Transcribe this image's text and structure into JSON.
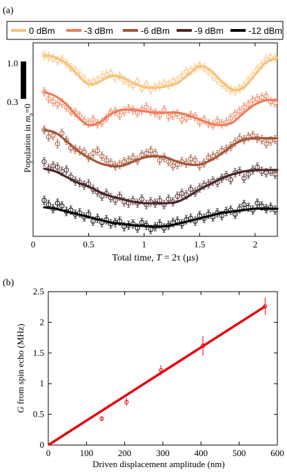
{
  "panels": {
    "a_label": "(a)",
    "b_label": "(b)"
  },
  "chart_data": [
    {
      "type": "scatter",
      "panel": "(a)",
      "xlabel": "Total time, T = 2τ (μs)",
      "xlabel_parts": {
        "main": "Total time, ",
        "ital": "T",
        "mid": " = 2τ (μs)"
      },
      "ylabel_parts": {
        "main": "Population in ",
        "ital": "m",
        "sub": "s",
        "end": "=0"
      },
      "xlim": [
        0,
        2.2
      ],
      "xticks": [
        0,
        0.5,
        1,
        1.5,
        2
      ],
      "scale_bar_labels": [
        "1.0",
        "0.3"
      ],
      "legend_position": "top",
      "series": [
        {
          "name": "0 dBm",
          "color": "#f6c27a",
          "offset": 80,
          "x": [
            0.1,
            0.14,
            0.18,
            0.22,
            0.26,
            0.3,
            0.34,
            0.38,
            0.42,
            0.46,
            0.5,
            0.54,
            0.58,
            0.62,
            0.66,
            0.7,
            0.74,
            0.78,
            0.82,
            0.86,
            0.9,
            0.94,
            0.98,
            1.02,
            1.06,
            1.1,
            1.14,
            1.18,
            1.22,
            1.26,
            1.3,
            1.34,
            1.38,
            1.42,
            1.46,
            1.5,
            1.54,
            1.58,
            1.62,
            1.66,
            1.7,
            1.74,
            1.78,
            1.82,
            1.86,
            1.9,
            1.94,
            1.98,
            2.02,
            2.06,
            2.1,
            2.14,
            2.18
          ],
          "y": [
            0,
            -2,
            -4,
            -8,
            -6,
            -12,
            -18,
            -22,
            -28,
            -34,
            -40,
            -38,
            -36,
            -30,
            -28,
            -26,
            -33,
            -30,
            -36,
            -40,
            -44,
            -38,
            -48,
            -42,
            -50,
            -46,
            -44,
            -40,
            -42,
            -38,
            -36,
            -30,
            -24,
            -22,
            -18,
            -15,
            -18,
            -24,
            -30,
            -36,
            -42,
            -46,
            -50,
            -52,
            -48,
            -44,
            -36,
            -28,
            -20,
            -14,
            -6,
            -3,
            -4
          ]
        },
        {
          "name": "-3 dBm",
          "color": "#ee7b58",
          "offset": 133,
          "x": [
            0.1,
            0.14,
            0.18,
            0.22,
            0.26,
            0.3,
            0.34,
            0.38,
            0.42,
            0.46,
            0.5,
            0.54,
            0.58,
            0.62,
            0.66,
            0.7,
            0.74,
            0.78,
            0.82,
            0.86,
            0.9,
            0.94,
            0.98,
            1.02,
            1.06,
            1.1,
            1.14,
            1.18,
            1.22,
            1.26,
            1.3,
            1.34,
            1.38,
            1.42,
            1.46,
            1.5,
            1.54,
            1.58,
            1.62,
            1.66,
            1.7,
            1.74,
            1.78,
            1.82,
            1.86,
            1.9,
            1.94,
            1.98,
            2.02,
            2.06,
            2.1,
            2.14,
            2.18
          ],
          "y": [
            0,
            -10,
            -14,
            -18,
            -16,
            -22,
            -28,
            -30,
            -35,
            -42,
            -45,
            -40,
            -46,
            -44,
            -38,
            -30,
            -28,
            -34,
            -28,
            -24,
            -26,
            -30,
            -26,
            -22,
            -28,
            -30,
            -34,
            -26,
            -36,
            -34,
            -32,
            -40,
            -38,
            -34,
            -36,
            -44,
            -40,
            -46,
            -48,
            -42,
            -46,
            -44,
            -38,
            -32,
            -28,
            -22,
            -18,
            -12,
            -10,
            -8,
            -6,
            -14,
            -16
          ]
        },
        {
          "name": "-6 dBm",
          "color": "#a35436",
          "offset": 188,
          "x": [
            0.1,
            0.14,
            0.18,
            0.22,
            0.26,
            0.3,
            0.34,
            0.38,
            0.42,
            0.46,
            0.5,
            0.54,
            0.58,
            0.62,
            0.66,
            0.7,
            0.74,
            0.78,
            0.82,
            0.86,
            0.9,
            0.94,
            0.98,
            1.02,
            1.06,
            1.1,
            1.14,
            1.18,
            1.22,
            1.26,
            1.3,
            1.34,
            1.38,
            1.42,
            1.46,
            1.5,
            1.54,
            1.58,
            1.62,
            1.66,
            1.7,
            1.74,
            1.78,
            1.82,
            1.86,
            1.9,
            1.94,
            1.98,
            2.02,
            2.06,
            2.1,
            2.14,
            2.18
          ],
          "y": [
            0,
            -10,
            -8,
            -20,
            -5,
            -15,
            -26,
            -28,
            -30,
            -32,
            -40,
            -34,
            -30,
            -38,
            -44,
            -48,
            -52,
            -50,
            -46,
            -44,
            -40,
            -44,
            -36,
            -34,
            -30,
            -34,
            -44,
            -40,
            -46,
            -52,
            -50,
            -46,
            -48,
            -42,
            -44,
            -52,
            -48,
            -40,
            -38,
            -36,
            -30,
            -28,
            -24,
            -18,
            -12,
            -14,
            -10,
            -8,
            -12,
            -14,
            -20,
            -16,
            -14
          ]
        },
        {
          "name": "-9 dBm",
          "color": "#4a2626",
          "offset": 244,
          "x": [
            0.1,
            0.14,
            0.18,
            0.22,
            0.26,
            0.3,
            0.34,
            0.38,
            0.42,
            0.46,
            0.5,
            0.54,
            0.58,
            0.62,
            0.66,
            0.7,
            0.74,
            0.78,
            0.82,
            0.86,
            0.9,
            0.94,
            0.98,
            1.02,
            1.06,
            1.1,
            1.14,
            1.18,
            1.22,
            1.26,
            1.3,
            1.34,
            1.38,
            1.42,
            1.46,
            1.5,
            1.54,
            1.58,
            1.62,
            1.66,
            1.7,
            1.74,
            1.78,
            1.82,
            1.86,
            1.9,
            1.94,
            1.98,
            2.02,
            2.06,
            2.1,
            2.14,
            2.18
          ],
          "y": [
            10,
            0,
            4,
            2,
            -4,
            -2,
            -12,
            -18,
            -20,
            -24,
            -22,
            -30,
            -34,
            -40,
            -36,
            -42,
            -46,
            -40,
            -48,
            -50,
            -46,
            -50,
            -44,
            -52,
            -48,
            -50,
            -46,
            -52,
            -44,
            -48,
            -40,
            -36,
            -38,
            -30,
            -34,
            -28,
            -24,
            -22,
            -18,
            -20,
            -14,
            -10,
            -16,
            -6,
            -4,
            -14,
            -8,
            -2,
            2,
            -4,
            -6,
            -4,
            -8
          ]
        },
        {
          "name": "-12 dBm",
          "color": "#000000",
          "offset": 300,
          "x": [
            0.1,
            0.14,
            0.18,
            0.22,
            0.26,
            0.3,
            0.34,
            0.38,
            0.42,
            0.46,
            0.5,
            0.54,
            0.58,
            0.62,
            0.66,
            0.7,
            0.74,
            0.78,
            0.82,
            0.86,
            0.9,
            0.94,
            0.98,
            1.02,
            1.06,
            1.1,
            1.14,
            1.18,
            1.22,
            1.26,
            1.3,
            1.34,
            1.38,
            1.42,
            1.46,
            1.5,
            1.54,
            1.58,
            1.62,
            1.66,
            1.7,
            1.74,
            1.78,
            1.82,
            1.86,
            1.9,
            1.94,
            1.98,
            2.02,
            2.06,
            2.1,
            2.14,
            2.18
          ],
          "y": [
            10,
            4,
            -2,
            6,
            2,
            -6,
            -4,
            -10,
            -8,
            -14,
            -10,
            -20,
            -16,
            -22,
            -18,
            -24,
            -22,
            -20,
            -28,
            -26,
            -24,
            -30,
            -22,
            -26,
            -32,
            -28,
            -24,
            -30,
            -26,
            -22,
            -20,
            -24,
            -18,
            -16,
            -20,
            -12,
            -16,
            -10,
            -14,
            -8,
            -12,
            -6,
            -4,
            -10,
            -2,
            4,
            0,
            -4,
            6,
            2,
            -2,
            0,
            -4
          ]
        }
      ],
      "fits": {
        "x": [
          0.1,
          0.2,
          0.3,
          0.4,
          0.5,
          0.6,
          0.7,
          0.8,
          0.9,
          1.0,
          1.1,
          1.2,
          1.3,
          1.4,
          1.5,
          1.6,
          1.7,
          1.8,
          1.9,
          2.0,
          2.1,
          2.2
        ],
        "y": [
          [
            0,
            -3,
            -12,
            -28,
            -42,
            -38,
            -30,
            -32,
            -40,
            -46,
            -47,
            -45,
            -40,
            -28,
            -16,
            -22,
            -38,
            -50,
            -46,
            -28,
            -10,
            -4
          ],
          [
            0,
            -6,
            -18,
            -36,
            -48,
            -44,
            -32,
            -26,
            -26,
            -28,
            -30,
            -30,
            -30,
            -34,
            -40,
            -46,
            -48,
            -44,
            -30,
            -18,
            -12,
            -12
          ],
          [
            0,
            -4,
            -16,
            -30,
            -40,
            -48,
            -52,
            -52,
            -46,
            -40,
            -38,
            -40,
            -46,
            -50,
            -50,
            -44,
            -34,
            -22,
            -14,
            -12,
            -12,
            -12
          ],
          [
            0,
            -4,
            -12,
            -20,
            -26,
            -34,
            -40,
            -44,
            -48,
            -50,
            -50,
            -50,
            -48,
            -40,
            -30,
            -22,
            -14,
            -8,
            -4,
            -2,
            -2,
            -2
          ],
          [
            0,
            -2,
            -6,
            -10,
            -14,
            -18,
            -22,
            -24,
            -26,
            -27,
            -28,
            -27,
            -24,
            -20,
            -16,
            -12,
            -8,
            -6,
            -4,
            -2,
            -2,
            -2
          ]
        ]
      }
    },
    {
      "type": "scatter",
      "panel": "(b)",
      "xlabel": "Driven displacement amplitude (nm)",
      "ylabel_parts": {
        "ital": "G",
        "main": " from spin echo (MHz)"
      },
      "xlim": [
        0,
        600
      ],
      "ylim": [
        0,
        2.5
      ],
      "xticks": [
        0,
        100,
        200,
        300,
        400,
        500,
        600
      ],
      "yticks": [
        0,
        0.5,
        1,
        1.5,
        2,
        2.5
      ],
      "ytick_labels": [
        "0",
        "0.5",
        "1",
        "1.5",
        "2",
        "2.5"
      ],
      "points": {
        "x": [
          140,
          205,
          295,
          405,
          568
        ],
        "y": [
          0.43,
          0.7,
          1.22,
          1.62,
          2.26
        ],
        "err": [
          0.04,
          0.06,
          0.08,
          0.16,
          0.14
        ]
      },
      "fit_line": {
        "x": [
          0,
          568
        ],
        "y": [
          0,
          2.26
        ]
      },
      "color": "#e8000b"
    }
  ]
}
